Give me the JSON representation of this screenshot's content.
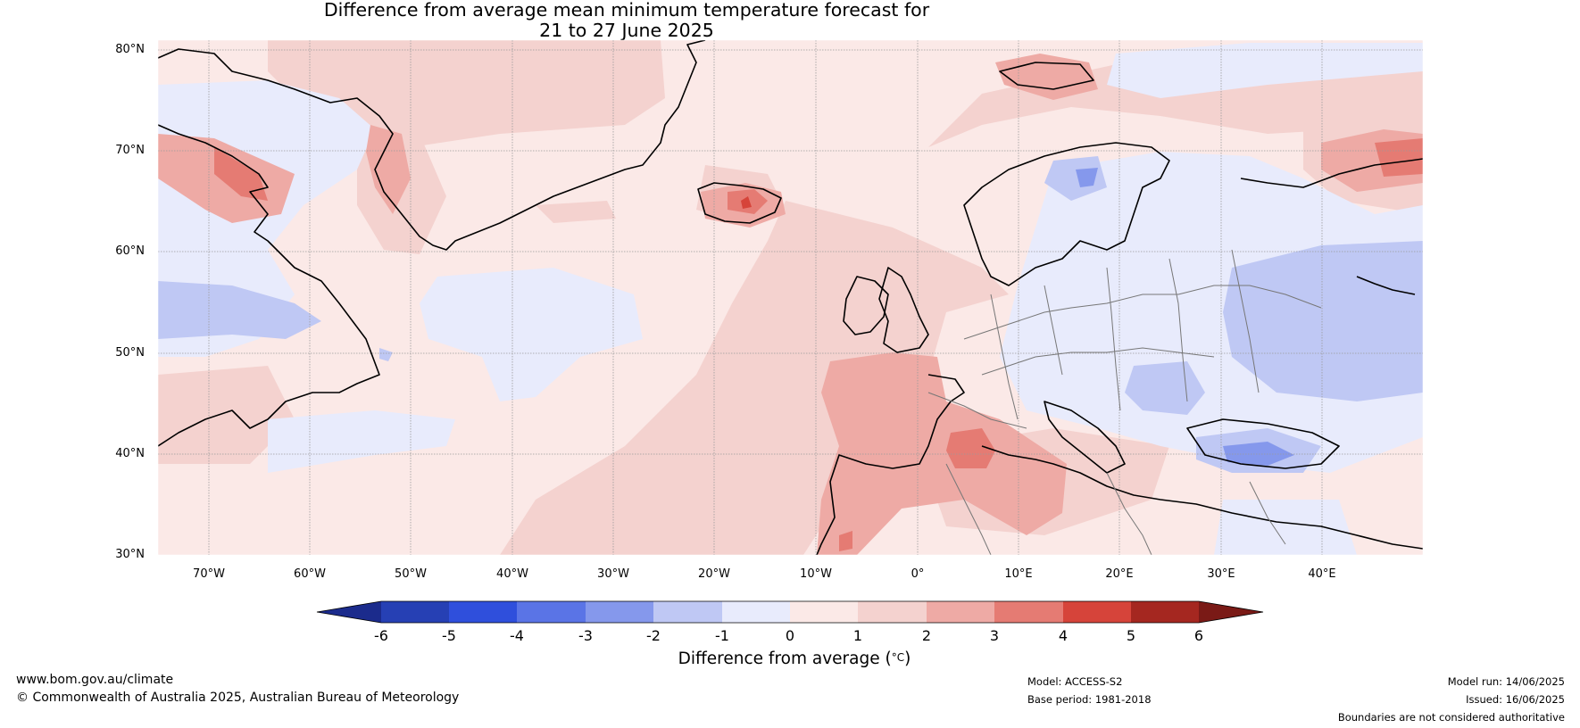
{
  "title": {
    "line1": "Difference from average mean minimum temperature forecast for",
    "line2": "21 to 27 June 2025"
  },
  "map": {
    "lat_labels": [
      "80°N",
      "70°N",
      "60°N",
      "50°N",
      "40°N",
      "30°N"
    ],
    "lon_labels": [
      "70°W",
      "60°W",
      "50°W",
      "40°W",
      "30°W",
      "20°W",
      "10°W",
      "0°",
      "10°E",
      "20°E",
      "30°E",
      "40°E"
    ],
    "extent": {
      "lon_min": -75,
      "lon_max": 50,
      "lat_min": 30,
      "lat_max": 81
    },
    "ocean_color": "#fbe9e7",
    "graticule": "dotted"
  },
  "colorbar": {
    "ticks": [
      "-6",
      "-5",
      "-4",
      "-3",
      "-2",
      "-1",
      "0",
      "1",
      "2",
      "3",
      "4",
      "5",
      "6"
    ],
    "colors": [
      "#1b2b8c",
      "#2640b4",
      "#2f4fdc",
      "#5a74e6",
      "#8598ec",
      "#bfc8f4",
      "#e8ebfc",
      "#fbe9e7",
      "#f4d2cf",
      "#eeaaa5",
      "#e57b73",
      "#d6443a",
      "#a52720",
      "#7a1a16"
    ],
    "label": "Difference from average (°C)",
    "label_main": "Difference from average (",
    "label_unit": "°C",
    "label_close": ")"
  },
  "footer": {
    "website": "www.bom.gov.au/climate",
    "copyright": "© Commonwealth of Australia 2025, Australian Bureau of Meteorology",
    "model": "Model: ACCESS-S2",
    "base_period": "Base period: 1981-2018",
    "model_run": "Model run: 14/06/2025",
    "issued": "Issued: 16/06/2025",
    "disclaimer": "Boundaries are not considered authoritative"
  }
}
